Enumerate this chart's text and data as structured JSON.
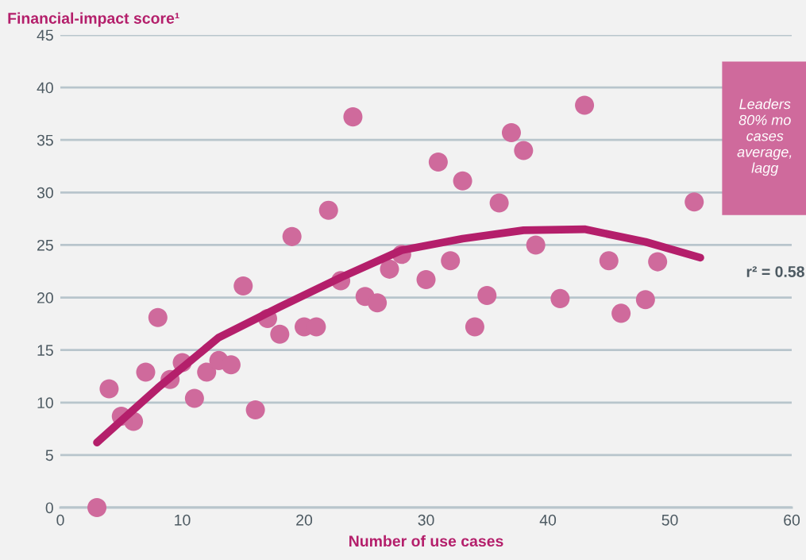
{
  "chart_data": {
    "type": "scatter",
    "ylabel": "Financial-impact score¹",
    "xlabel": "Number of use cases",
    "xlim": [
      0,
      60
    ],
    "xticks": [
      0,
      10,
      20,
      30,
      40,
      50,
      60
    ],
    "ylim": [
      0,
      45
    ],
    "yticks": [
      0,
      5,
      10,
      15,
      20,
      25,
      30,
      35,
      40,
      45
    ],
    "grid": "y",
    "legend": false,
    "marker": "circle",
    "series": [
      {
        "color": "#cf6a9c",
        "x": [
          3,
          4,
          5,
          6,
          7,
          8,
          9,
          10,
          11,
          12,
          13,
          14,
          15,
          16,
          17,
          18,
          19,
          20,
          21,
          22,
          23,
          24,
          25,
          26,
          27,
          28,
          30,
          31,
          32,
          33,
          34,
          35,
          36,
          37,
          38,
          39,
          41,
          43,
          45,
          46,
          48,
          49,
          52
        ],
        "values": [
          0,
          11.3,
          8.7,
          8.2,
          12.9,
          18.1,
          12.2,
          13.8,
          10.4,
          12.9,
          14.0,
          13.6,
          21.1,
          9.3,
          18.0,
          16.5,
          25.8,
          17.2,
          17.2,
          28.3,
          21.6,
          37.2,
          20.1,
          19.5,
          22.7,
          24.1,
          21.7,
          32.9,
          23.5,
          31.1,
          17.2,
          20.2,
          29.0,
          35.7,
          34.0,
          25.0,
          19.9,
          38.3,
          23.5,
          18.5,
          19.8,
          23.4,
          29.1
        ]
      },
      {
        "type": "line",
        "color": "#b41f6b",
        "marker": "none",
        "line_style": "solid",
        "x": [
          3,
          8,
          13,
          18,
          23,
          28,
          33,
          38,
          43,
          48,
          52.5
        ],
        "values": [
          6.2,
          11.4,
          16.2,
          19.1,
          21.9,
          24.5,
          25.6,
          26.4,
          26.5,
          25.3,
          23.8
        ]
      }
    ],
    "annotations": [
      "r² = 0.58",
      "Leaders\n80% mo\ncases\naverage,\nlagg"
    ]
  }
}
